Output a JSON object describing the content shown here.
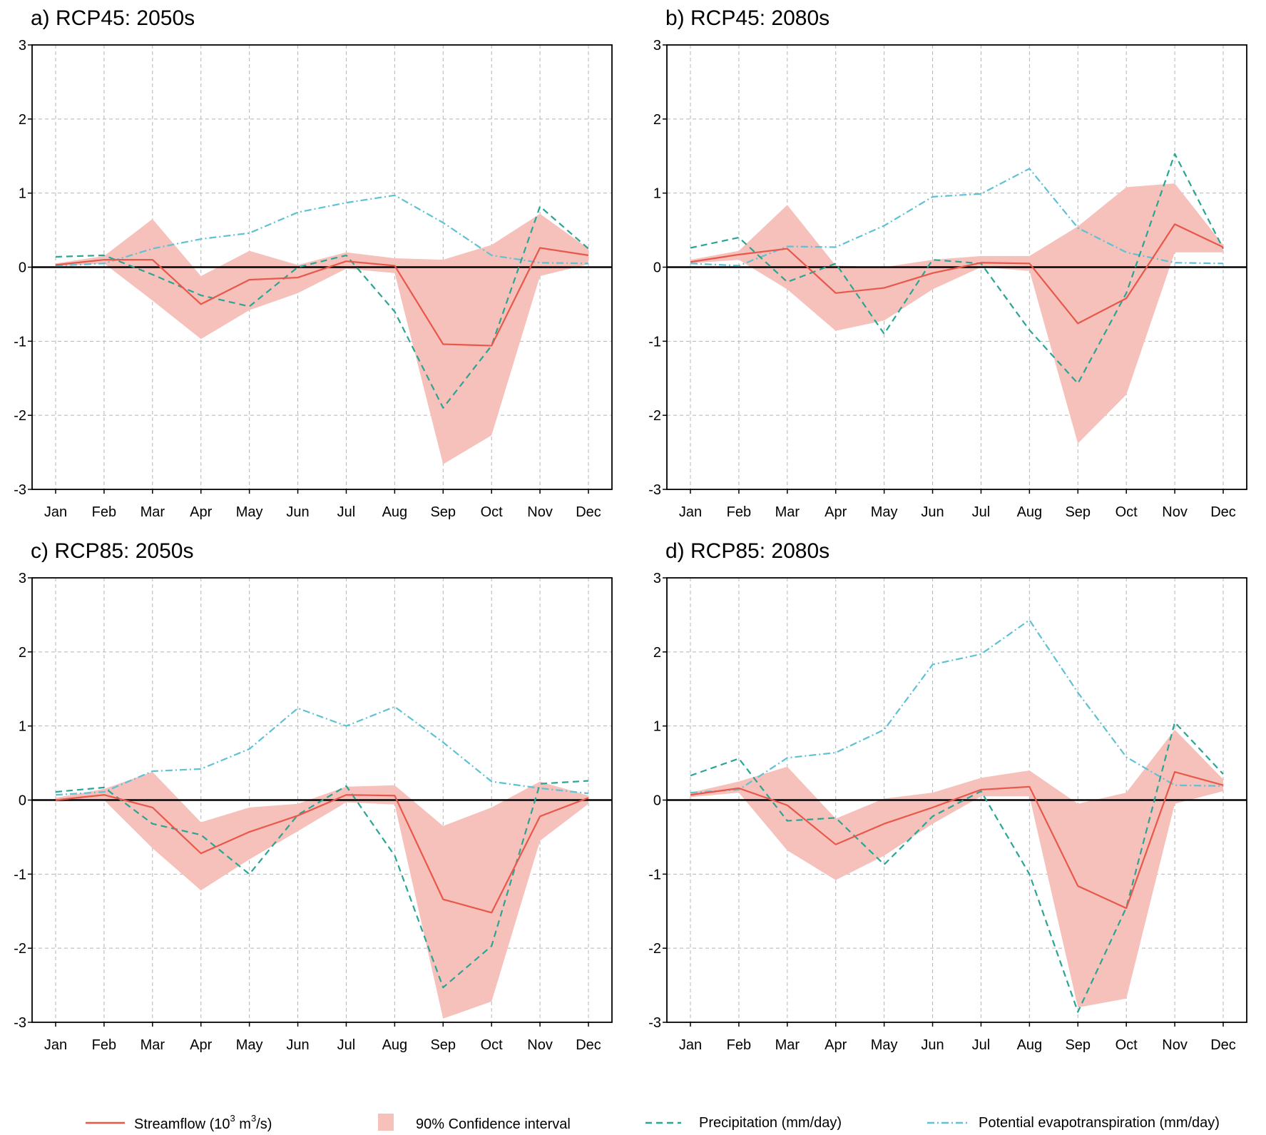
{
  "colors": {
    "streamflow": "#e8584a",
    "ci": "#f6c0bb",
    "precip": "#2aa594",
    "pet": "#5ec1d4",
    "grid": "#b5b5b5",
    "zero": "#000000"
  },
  "legend": {
    "streamflow_label": "Streamflow (10",
    "streamflow_sup1": "3",
    "streamflow_mid": " m",
    "streamflow_sup2": "3",
    "streamflow_end": "/s)",
    "ci_label": "90% Confidence interval",
    "precip_label": "Precipitation (mm/day)",
    "pet_label": "Potential evapotranspiration (mm/day)"
  },
  "chart_data": [
    {
      "type": "line",
      "title": "a) RCP45: 2050s",
      "categories": [
        "Jan",
        "Feb",
        "Mar",
        "Apr",
        "May",
        "Jun",
        "Jul",
        "Aug",
        "Sep",
        "Oct",
        "Nov",
        "Dec"
      ],
      "ylim": [
        -3,
        3
      ],
      "yticks": [
        3,
        2,
        1,
        0,
        -1,
        -2,
        -3
      ],
      "series": [
        {
          "name": "Streamflow",
          "values": [
            0.03,
            0.1,
            0.1,
            -0.5,
            -0.17,
            -0.14,
            0.08,
            0.02,
            -1.04,
            -1.06,
            0.26,
            0.16
          ]
        },
        {
          "name": "CI upper",
          "values": [
            0.05,
            0.15,
            0.65,
            -0.12,
            0.22,
            0.03,
            0.2,
            0.12,
            0.1,
            0.3,
            0.72,
            0.25
          ]
        },
        {
          "name": "CI lower",
          "values": [
            0.01,
            0.05,
            -0.45,
            -0.97,
            -0.58,
            -0.35,
            -0.02,
            -0.08,
            -2.66,
            -2.27,
            -0.12,
            0.04
          ]
        },
        {
          "name": "Precipitation",
          "values": [
            0.14,
            0.16,
            -0.1,
            -0.38,
            -0.53,
            0.0,
            0.16,
            -0.6,
            -1.9,
            -1.06,
            0.82,
            0.25
          ]
        },
        {
          "name": "Potential evapotranspiration",
          "values": [
            0.02,
            0.05,
            0.25,
            0.38,
            0.46,
            0.74,
            0.87,
            0.97,
            0.6,
            0.16,
            0.06,
            0.05
          ]
        }
      ]
    },
    {
      "type": "line",
      "title": "b) RCP45: 2080s",
      "categories": [
        "Jan",
        "Feb",
        "Mar",
        "Apr",
        "May",
        "Jun",
        "Jul",
        "Aug",
        "Sep",
        "Oct",
        "Nov",
        "Dec"
      ],
      "ylim": [
        -3,
        3
      ],
      "yticks": [
        3,
        2,
        1,
        0,
        -1,
        -2,
        -3
      ],
      "series": [
        {
          "name": "Streamflow",
          "values": [
            0.07,
            0.17,
            0.25,
            -0.35,
            -0.28,
            -0.08,
            0.06,
            0.05,
            -0.76,
            -0.42,
            0.58,
            0.27
          ]
        },
        {
          "name": "CI upper",
          "values": [
            0.1,
            0.22,
            0.84,
            0.02,
            0.0,
            0.1,
            0.15,
            0.15,
            0.55,
            1.08,
            1.13,
            0.3
          ]
        },
        {
          "name": "CI lower",
          "values": [
            0.05,
            0.1,
            -0.3,
            -0.86,
            -0.72,
            -0.3,
            0.0,
            -0.05,
            -2.38,
            -1.72,
            0.2,
            0.2
          ]
        },
        {
          "name": "Precipitation",
          "values": [
            0.26,
            0.4,
            -0.2,
            0.05,
            -0.9,
            0.1,
            0.05,
            -0.85,
            -1.57,
            -0.35,
            1.53,
            0.25
          ]
        },
        {
          "name": "Potential evapotranspiration",
          "values": [
            0.05,
            0.02,
            0.28,
            0.27,
            0.56,
            0.95,
            0.99,
            1.33,
            0.53,
            0.2,
            0.06,
            0.05
          ]
        }
      ]
    },
    {
      "type": "line",
      "title": "c) RCP85: 2050s",
      "categories": [
        "Jan",
        "Feb",
        "Mar",
        "Apr",
        "May",
        "Jun",
        "Jul",
        "Aug",
        "Sep",
        "Oct",
        "Nov",
        "Dec"
      ],
      "ylim": [
        -3,
        3
      ],
      "yticks": [
        3,
        2,
        1,
        0,
        -1,
        -2,
        -3
      ],
      "series": [
        {
          "name": "Streamflow",
          "values": [
            0.0,
            0.07,
            -0.1,
            -0.72,
            -0.43,
            -0.21,
            0.07,
            0.06,
            -1.34,
            -1.52,
            -0.22,
            0.03
          ]
        },
        {
          "name": "CI upper",
          "values": [
            0.03,
            0.15,
            0.38,
            -0.3,
            -0.1,
            -0.05,
            0.18,
            0.2,
            -0.35,
            -0.1,
            0.25,
            0.06
          ]
        },
        {
          "name": "CI lower",
          "values": [
            -0.02,
            0.0,
            -0.65,
            -1.22,
            -0.8,
            -0.42,
            -0.03,
            -0.06,
            -2.95,
            -2.72,
            -0.55,
            -0.05
          ]
        },
        {
          "name": "Precipitation",
          "values": [
            0.11,
            0.17,
            -0.32,
            -0.47,
            -1.0,
            -0.2,
            0.19,
            -0.75,
            -2.53,
            -1.97,
            0.22,
            0.26
          ]
        },
        {
          "name": "Potential evapotranspiration",
          "values": [
            0.07,
            0.11,
            0.39,
            0.42,
            0.69,
            1.24,
            1.0,
            1.26,
            0.78,
            0.25,
            0.16,
            0.09
          ]
        }
      ]
    },
    {
      "type": "line",
      "title": "d) RCP85: 2080s",
      "categories": [
        "Jan",
        "Feb",
        "Mar",
        "Apr",
        "May",
        "Jun",
        "Jul",
        "Aug",
        "Sep",
        "Oct",
        "Nov",
        "Dec"
      ],
      "ylim": [
        -3,
        3
      ],
      "yticks": [
        3,
        2,
        1,
        0,
        -1,
        -2,
        -3
      ],
      "series": [
        {
          "name": "Streamflow",
          "values": [
            0.07,
            0.16,
            -0.07,
            -0.6,
            -0.32,
            -0.1,
            0.14,
            0.18,
            -1.16,
            -1.46,
            0.38,
            0.2
          ]
        },
        {
          "name": "CI upper",
          "values": [
            0.1,
            0.25,
            0.45,
            -0.25,
            0.02,
            0.1,
            0.3,
            0.4,
            -0.05,
            0.1,
            0.95,
            0.28
          ]
        },
        {
          "name": "CI lower",
          "values": [
            0.04,
            0.1,
            -0.68,
            -1.08,
            -0.75,
            -0.32,
            0.05,
            0.05,
            -2.8,
            -2.68,
            -0.05,
            0.12
          ]
        },
        {
          "name": "Precipitation",
          "values": [
            0.33,
            0.56,
            -0.28,
            -0.24,
            -0.87,
            -0.22,
            0.12,
            -1.0,
            -2.86,
            -1.45,
            1.05,
            0.35
          ]
        },
        {
          "name": "Potential evapotranspiration",
          "values": [
            0.1,
            0.14,
            0.57,
            0.64,
            0.95,
            1.83,
            1.97,
            2.43,
            1.45,
            0.58,
            0.2,
            0.19
          ]
        }
      ]
    }
  ]
}
